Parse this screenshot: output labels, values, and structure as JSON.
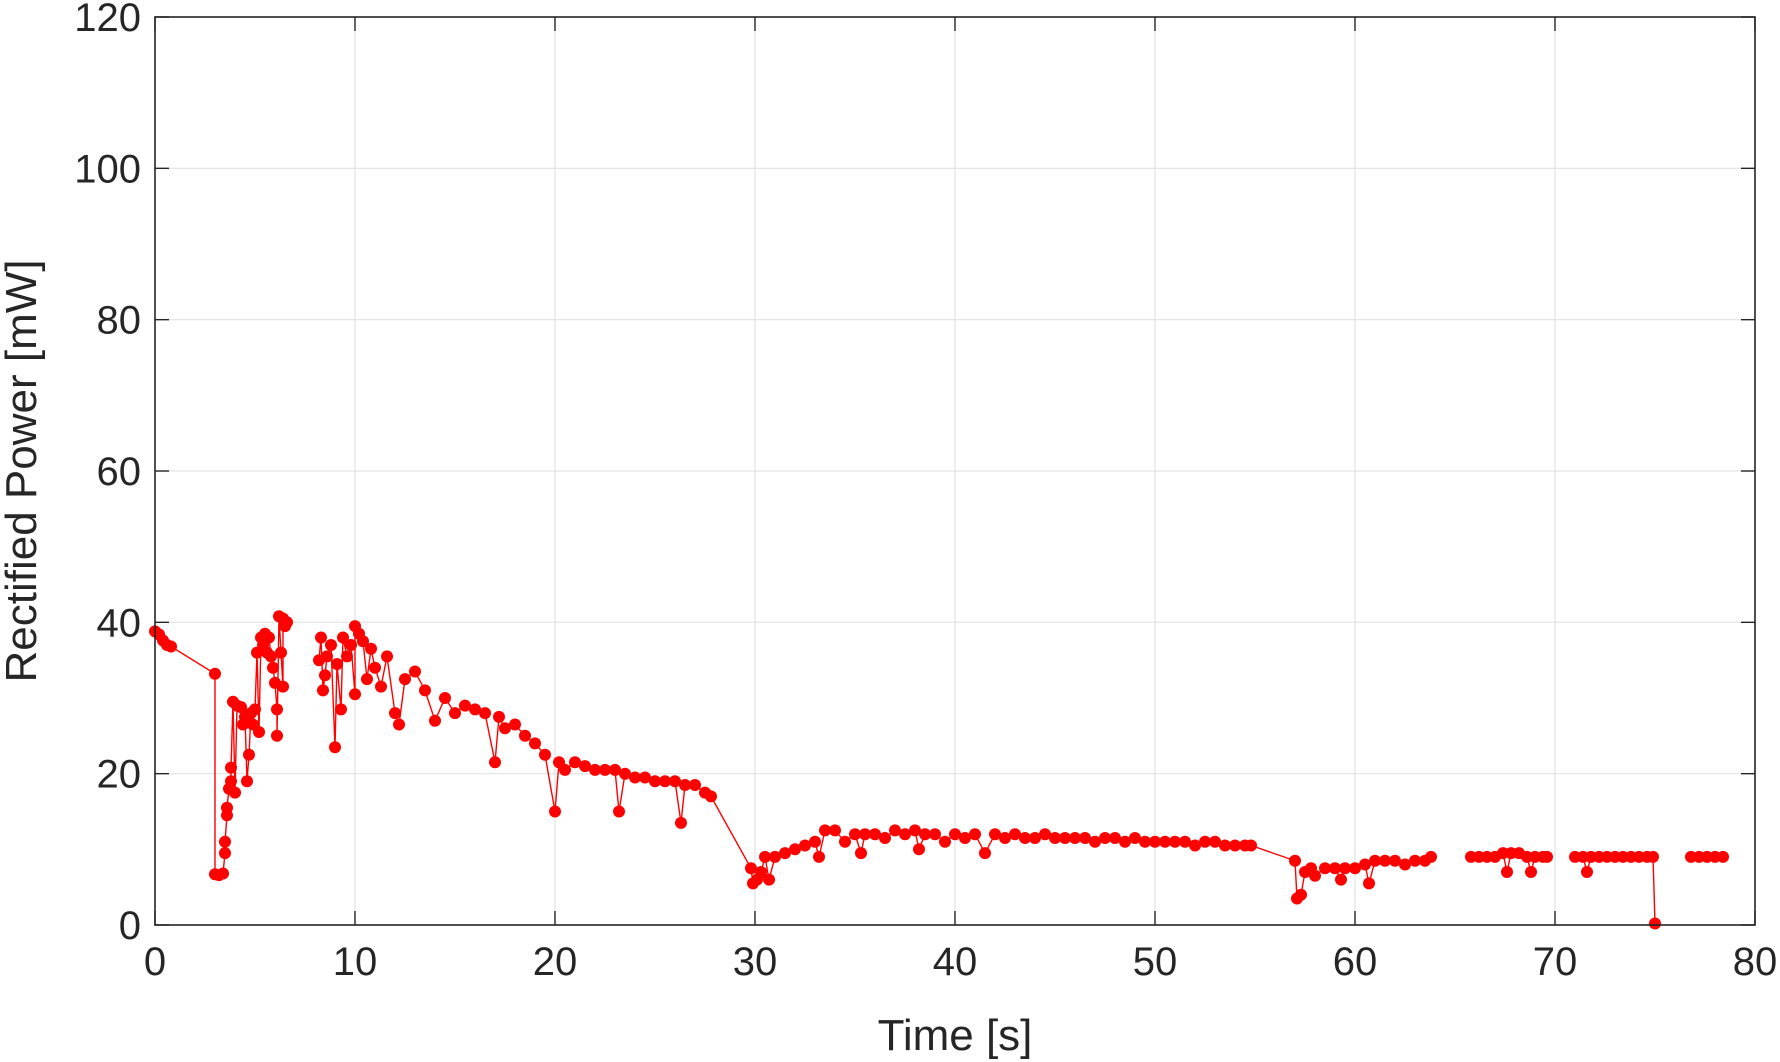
{
  "chart_data": {
    "type": "line",
    "title": "",
    "xlabel": "Time [s]",
    "ylabel": "Rectified Power [mW]",
    "xlim": [
      0,
      80
    ],
    "ylim": [
      0,
      120
    ],
    "xticks": [
      0,
      10,
      20,
      30,
      40,
      50,
      60,
      70,
      80
    ],
    "yticks": [
      0,
      20,
      40,
      60,
      80,
      100,
      120
    ],
    "grid": true,
    "legend": "none",
    "marker": "filled-circle",
    "series": [
      {
        "color": "#ff0000",
        "segments": [
          [
            [
              0.0,
              38.8
            ],
            [
              0.2,
              38.4
            ],
            [
              0.4,
              37.6
            ],
            [
              0.6,
              37.0
            ],
            [
              0.8,
              36.8
            ],
            [
              3.0,
              33.2
            ],
            [
              3.0,
              6.7
            ],
            [
              3.2,
              6.6
            ],
            [
              3.4,
              6.8
            ],
            [
              3.5,
              9.5
            ],
            [
              3.5,
              11.0
            ],
            [
              3.6,
              14.5
            ],
            [
              3.6,
              15.5
            ],
            [
              3.7,
              18.0
            ],
            [
              3.8,
              19.0
            ],
            [
              3.8,
              20.8
            ],
            [
              3.9,
              29.5
            ],
            [
              4.0,
              17.5
            ],
            [
              4.1,
              29.0
            ],
            [
              4.3,
              28.8
            ],
            [
              4.4,
              26.5
            ],
            [
              4.5,
              27.5
            ],
            [
              4.6,
              19.0
            ],
            [
              4.7,
              22.5
            ],
            [
              4.8,
              28.0
            ],
            [
              4.9,
              26.5
            ],
            [
              5.0,
              28.5
            ],
            [
              5.1,
              36.0
            ],
            [
              5.2,
              25.5
            ],
            [
              5.3,
              38.0
            ],
            [
              5.4,
              37.0
            ],
            [
              5.5,
              38.5
            ],
            [
              5.6,
              36.0
            ],
            [
              5.7,
              38.0
            ],
            [
              5.8,
              35.5
            ],
            [
              5.9,
              34.0
            ],
            [
              6.0,
              32.0
            ],
            [
              6.1,
              28.5
            ],
            [
              6.1,
              25.0
            ],
            [
              6.2,
              40.8
            ],
            [
              6.3,
              36.0
            ],
            [
              6.4,
              31.5
            ],
            [
              6.4,
              40.5
            ],
            [
              6.5,
              39.5
            ],
            [
              6.6,
              40.0
            ]
          ],
          [
            [
              8.2,
              35.0
            ],
            [
              8.3,
              38.0
            ],
            [
              8.4,
              31.0
            ],
            [
              8.5,
              33.0
            ],
            [
              8.6,
              35.5
            ],
            [
              8.8,
              37.0
            ],
            [
              9.0,
              23.5
            ],
            [
              9.1,
              34.5
            ],
            [
              9.3,
              28.5
            ],
            [
              9.4,
              38.0
            ],
            [
              9.6,
              35.5
            ],
            [
              9.8,
              37.0
            ],
            [
              10.0,
              30.5
            ],
            [
              10.0,
              39.5
            ],
            [
              10.2,
              38.5
            ],
            [
              10.4,
              37.5
            ],
            [
              10.6,
              32.5
            ],
            [
              10.8,
              36.5
            ],
            [
              11.0,
              34.0
            ],
            [
              11.3,
              31.5
            ],
            [
              11.6,
              35.5
            ],
            [
              12.0,
              28.0
            ],
            [
              12.2,
              26.5
            ],
            [
              12.5,
              32.5
            ],
            [
              13.0,
              33.5
            ],
            [
              13.5,
              31.0
            ],
            [
              14.0,
              27.0
            ],
            [
              14.5,
              30.0
            ],
            [
              15.0,
              28.0
            ],
            [
              15.5,
              29.0
            ],
            [
              16.0,
              28.5
            ],
            [
              16.5,
              28.0
            ],
            [
              17.0,
              21.5
            ],
            [
              17.2,
              27.5
            ],
            [
              17.5,
              26.0
            ],
            [
              18.0,
              26.5
            ],
            [
              18.5,
              25.0
            ],
            [
              19.0,
              24.0
            ],
            [
              19.5,
              22.5
            ],
            [
              20.0,
              15.0
            ],
            [
              20.2,
              21.5
            ],
            [
              20.5,
              20.5
            ],
            [
              21.0,
              21.5
            ],
            [
              21.5,
              21.0
            ],
            [
              22.0,
              20.5
            ],
            [
              22.5,
              20.5
            ],
            [
              23.0,
              20.5
            ],
            [
              23.2,
              15.0
            ],
            [
              23.5,
              20.0
            ],
            [
              24.0,
              19.5
            ],
            [
              24.5,
              19.5
            ],
            [
              25.0,
              19.0
            ],
            [
              25.5,
              19.0
            ],
            [
              26.0,
              19.0
            ],
            [
              26.3,
              13.5
            ],
            [
              26.5,
              18.5
            ],
            [
              27.0,
              18.5
            ],
            [
              27.5,
              17.5
            ],
            [
              27.8,
              17.0
            ],
            [
              29.8,
              7.5
            ],
            [
              29.9,
              5.5
            ],
            [
              30.1,
              6.0
            ],
            [
              30.3,
              7.0
            ],
            [
              30.5,
              9.0
            ],
            [
              30.7,
              6.0
            ],
            [
              31.0,
              9.0
            ],
            [
              31.5,
              9.5
            ],
            [
              32.0,
              10.0
            ],
            [
              32.5,
              10.5
            ],
            [
              33.0,
              11.0
            ],
            [
              33.2,
              9.0
            ],
            [
              33.5,
              12.5
            ],
            [
              34.0,
              12.5
            ],
            [
              34.5,
              11.0
            ],
            [
              35.0,
              12.0
            ],
            [
              35.3,
              9.5
            ],
            [
              35.5,
              12.0
            ],
            [
              36.0,
              12.0
            ],
            [
              36.5,
              11.5
            ],
            [
              37.0,
              12.5
            ],
            [
              37.5,
              12.0
            ],
            [
              38.0,
              12.5
            ],
            [
              38.2,
              10.0
            ],
            [
              38.5,
              12.0
            ],
            [
              39.0,
              12.0
            ],
            [
              39.5,
              11.0
            ],
            [
              40.0,
              12.0
            ],
            [
              40.5,
              11.5
            ],
            [
              41.0,
              12.0
            ],
            [
              41.5,
              9.5
            ],
            [
              42.0,
              12.0
            ],
            [
              42.5,
              11.5
            ],
            [
              43.0,
              12.0
            ],
            [
              43.5,
              11.5
            ],
            [
              44.0,
              11.5
            ],
            [
              44.5,
              12.0
            ],
            [
              45.0,
              11.5
            ],
            [
              45.5,
              11.5
            ],
            [
              46.0,
              11.5
            ],
            [
              46.5,
              11.5
            ],
            [
              47.0,
              11.0
            ],
            [
              47.5,
              11.5
            ],
            [
              48.0,
              11.5
            ],
            [
              48.5,
              11.0
            ],
            [
              49.0,
              11.5
            ],
            [
              49.5,
              11.0
            ],
            [
              50.0,
              11.0
            ],
            [
              50.5,
              11.0
            ],
            [
              51.0,
              11.0
            ],
            [
              51.5,
              11.0
            ],
            [
              52.0,
              10.5
            ],
            [
              52.5,
              11.0
            ],
            [
              53.0,
              11.0
            ],
            [
              53.5,
              10.5
            ],
            [
              54.0,
              10.5
            ],
            [
              54.5,
              10.5
            ],
            [
              54.8,
              10.5
            ],
            [
              57.0,
              8.5
            ],
            [
              57.1,
              3.5
            ],
            [
              57.3,
              4.0
            ],
            [
              57.5,
              7.0
            ],
            [
              57.8,
              7.5
            ],
            [
              58.0,
              6.5
            ],
            [
              58.5,
              7.5
            ],
            [
              59.0,
              7.5
            ],
            [
              59.3,
              6.0
            ],
            [
              59.5,
              7.5
            ],
            [
              60.0,
              7.5
            ],
            [
              60.5,
              8.0
            ],
            [
              60.7,
              5.5
            ],
            [
              61.0,
              8.5
            ],
            [
              61.5,
              8.5
            ],
            [
              62.0,
              8.5
            ],
            [
              62.5,
              8.0
            ],
            [
              63.0,
              8.5
            ],
            [
              63.5,
              8.5
            ],
            [
              63.8,
              9.0
            ]
          ],
          [
            [
              65.8,
              9.0
            ],
            [
              66.2,
              9.0
            ],
            [
              66.6,
              9.0
            ],
            [
              67.0,
              9.0
            ],
            [
              67.4,
              9.5
            ],
            [
              67.6,
              7.0
            ],
            [
              67.8,
              9.5
            ],
            [
              68.2,
              9.5
            ],
            [
              68.6,
              9.0
            ],
            [
              68.8,
              7.0
            ],
            [
              69.0,
              9.0
            ],
            [
              69.4,
              9.0
            ],
            [
              69.6,
              9.0
            ]
          ],
          [
            [
              71.0,
              9.0
            ],
            [
              71.4,
              9.0
            ],
            [
              71.6,
              7.0
            ],
            [
              71.8,
              9.0
            ],
            [
              72.2,
              9.0
            ],
            [
              72.6,
              9.0
            ],
            [
              73.0,
              9.0
            ],
            [
              73.4,
              9.0
            ],
            [
              73.8,
              9.0
            ],
            [
              74.2,
              9.0
            ],
            [
              74.6,
              9.0
            ],
            [
              74.9,
              9.0
            ],
            [
              75.0,
              0.2
            ]
          ],
          [
            [
              76.8,
              9.0
            ],
            [
              77.2,
              9.0
            ],
            [
              77.6,
              9.0
            ],
            [
              78.0,
              9.0
            ],
            [
              78.4,
              9.0
            ]
          ]
        ]
      }
    ]
  }
}
